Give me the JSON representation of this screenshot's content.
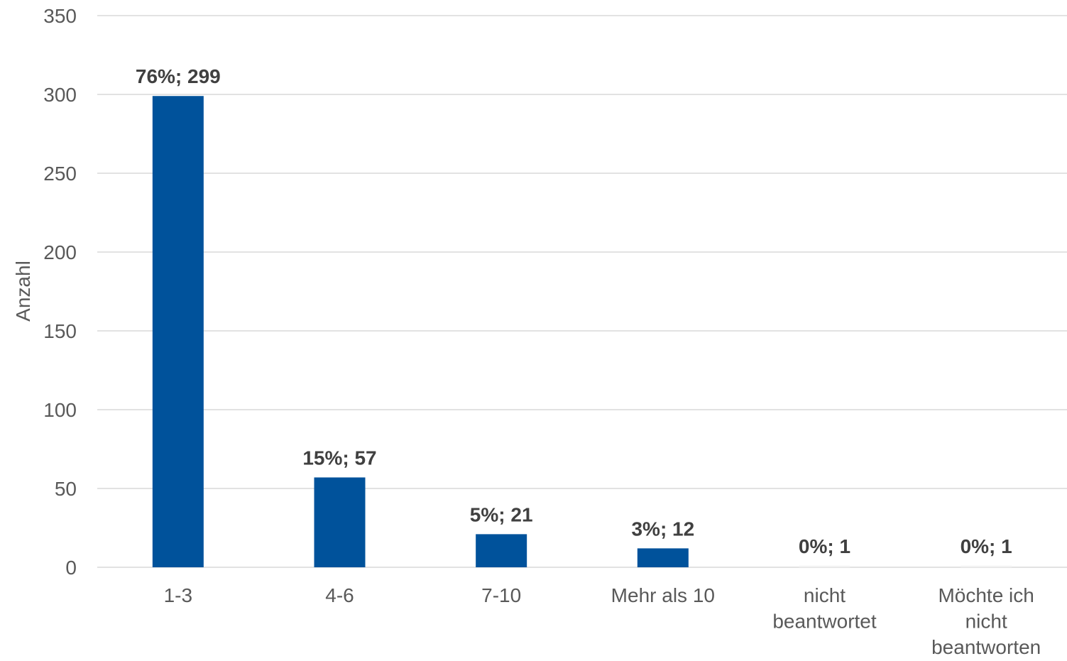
{
  "chart_data": {
    "type": "bar",
    "xlabel": "",
    "ylabel": "Anzahl",
    "ylim": [
      0,
      350
    ],
    "yticks": [
      0,
      50,
      100,
      150,
      200,
      250,
      300,
      350
    ],
    "grid": true,
    "bar_color": "#00529B",
    "zero_bar_color": "#F2F2F2",
    "categories": [
      [
        "1-3"
      ],
      [
        "4-6"
      ],
      [
        "7-10"
      ],
      [
        "Mehr als 10"
      ],
      [
        "nicht",
        "beantwortet"
      ],
      [
        "Möchte ich",
        "nicht",
        "beantworten"
      ]
    ],
    "values": [
      299,
      57,
      21,
      12,
      1,
      1
    ],
    "data_labels": [
      "76%; 299",
      "15%; 57",
      "5%; 21",
      "3%; 12",
      "0%; 1",
      "0%; 1"
    ]
  }
}
